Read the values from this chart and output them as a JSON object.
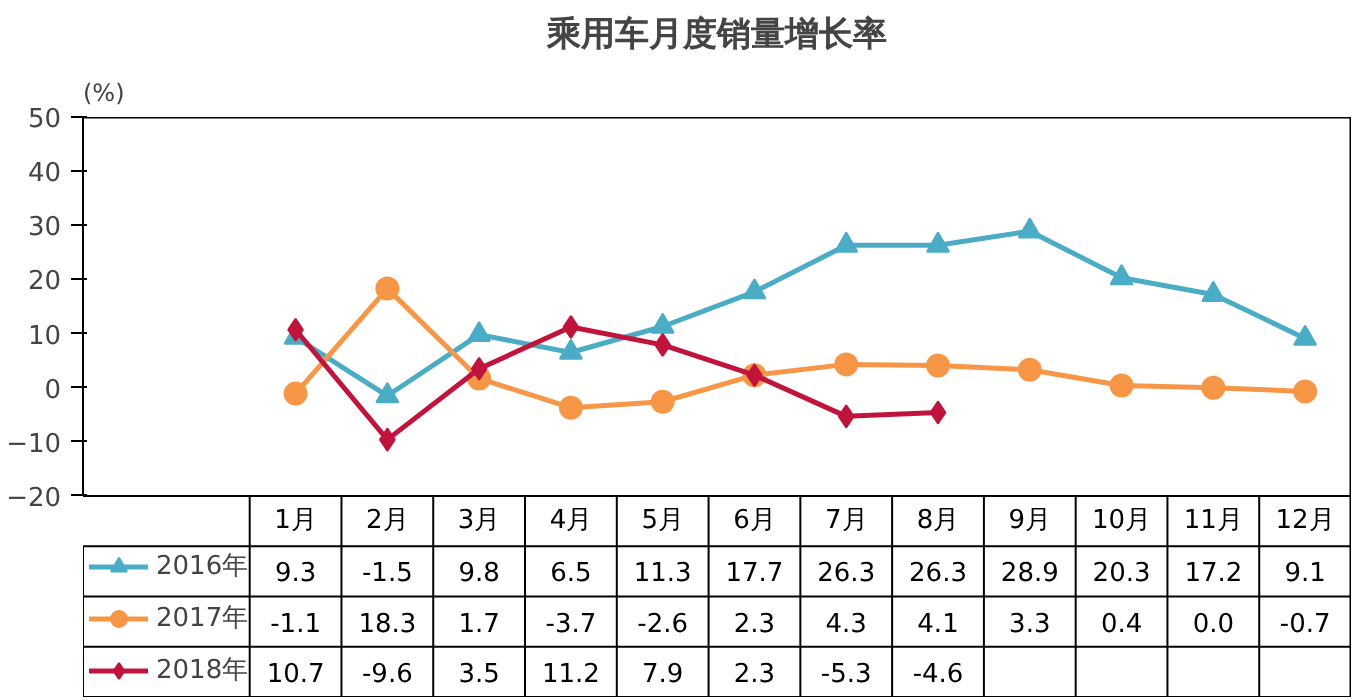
{
  "chart_data": {
    "type": "line",
    "title": "乘用车月度销量增长率",
    "ylabel": "(%)",
    "categories": [
      "1月",
      "2月",
      "3月",
      "4月",
      "5月",
      "6月",
      "7月",
      "8月",
      "9月",
      "10月",
      "11月",
      "12月"
    ],
    "series": [
      {
        "name": "2016年",
        "color": "#4bacc6",
        "marker": "triangle",
        "values": [
          9.3,
          -1.5,
          9.8,
          6.5,
          11.3,
          17.7,
          26.3,
          26.3,
          28.9,
          20.3,
          17.2,
          9.1
        ],
        "value_labels": [
          "9.3",
          "-1.5",
          "9.8",
          "6.5",
          "11.3",
          "17.7",
          "26.3",
          "26.3",
          "28.9",
          "20.3",
          "17.2",
          "9.1"
        ]
      },
      {
        "name": "2017年",
        "color": "#f79646",
        "marker": "circle",
        "values": [
          -1.1,
          18.3,
          1.7,
          -3.7,
          -2.6,
          2.3,
          4.3,
          4.1,
          3.3,
          0.4,
          0,
          -0.7
        ],
        "value_labels": [
          "-1.1",
          "18.3",
          "1.7",
          "-3.7",
          "-2.6",
          "2.3",
          "4.3",
          "4.1",
          "3.3",
          "0.4",
          "0.0",
          "-0.7"
        ]
      },
      {
        "name": "2018年",
        "color": "#c0143c",
        "marker": "diamond",
        "values": [
          10.7,
          -9.6,
          3.5,
          11.2,
          7.9,
          2.3,
          -5.3,
          -4.6,
          null,
          null,
          null,
          null
        ],
        "value_labels": [
          "10.7",
          "-9.6",
          "3.5",
          "11.2",
          "7.9",
          "2.3",
          "-5.3",
          "-4.6",
          null,
          null,
          null,
          null
        ]
      }
    ],
    "ylim": [
      -20,
      50
    ],
    "yticks": [
      -20,
      -10,
      0,
      10,
      20,
      30,
      40,
      50
    ],
    "grid": false,
    "legend": "bottom",
    "line_style": "solid"
  }
}
